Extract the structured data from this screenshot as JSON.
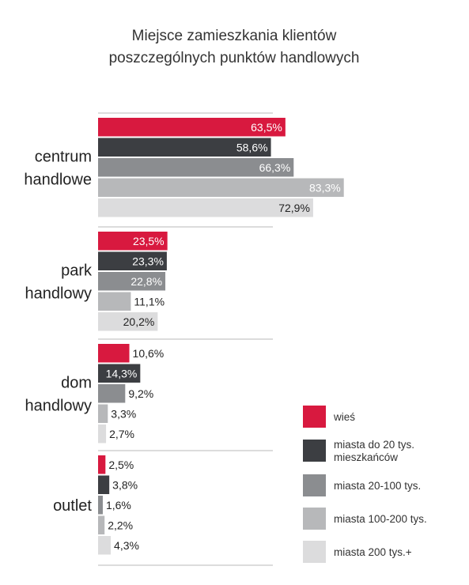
{
  "chart_data": {
    "type": "bar",
    "orientation": "horizontal",
    "title": [
      "Miejsce zamieszkania klientów",
      "poszczególnych punktów handlowych"
    ],
    "categories": [
      [
        "centrum",
        "handlowe"
      ],
      [
        "park",
        "handlowy"
      ],
      [
        "dom",
        "handlowy"
      ],
      [
        "outlet"
      ]
    ],
    "series": [
      {
        "name": [
          "wieś"
        ],
        "color": "#d8193f",
        "values": [
          63.5,
          23.5,
          10.6,
          2.5
        ]
      },
      {
        "name": [
          "miasta do 20 tys.",
          "mieszkańców"
        ],
        "color": "#3c3e42",
        "values": [
          58.6,
          23.3,
          14.3,
          3.8
        ]
      },
      {
        "name": [
          "miasta 20-100 tys."
        ],
        "color": "#8b8d90",
        "values": [
          66.3,
          22.8,
          9.2,
          1.6
        ]
      },
      {
        "name": [
          "miasta 100-200 tys."
        ],
        "color": "#b7b8ba",
        "values": [
          83.3,
          11.1,
          3.3,
          2.2
        ]
      },
      {
        "name": [
          "miasta 200 tys.+"
        ],
        "color": "#dcdcdd",
        "values": [
          72.9,
          20.2,
          2.7,
          4.3
        ]
      }
    ],
    "value_labels": [
      [
        "63,5%",
        "23,5%",
        "10,6%",
        "2,5%"
      ],
      [
        "58,6%",
        "23,3%",
        "14,3%",
        "3,8%"
      ],
      [
        "66,3%",
        "22,8%",
        "9,2%",
        "1,6%"
      ],
      [
        "83,3%",
        "11,1%",
        "3,3%",
        "2,2%"
      ],
      [
        "72,9%",
        "20,2%",
        "2,7%",
        "4,3%"
      ]
    ],
    "xlim": [
      0,
      100
    ],
    "grid": false,
    "legend": "bottom-right"
  }
}
